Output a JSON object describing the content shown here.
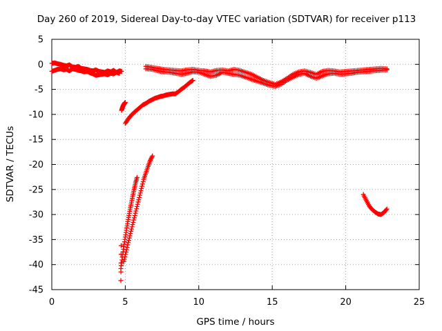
{
  "chart_data": {
    "type": "scatter",
    "title": "Day 260 of 2019, Sidereal Day-to-day VTEC variation (SDTVAR) for receiver p113",
    "xlabel": "GPS time / hours",
    "ylabel": "SDTVAR / TECUs",
    "xlim": [
      0,
      25
    ],
    "ylim": [
      -45,
      5
    ],
    "xticks": [
      0,
      5,
      10,
      15,
      20,
      25
    ],
    "yticks": [
      5,
      0,
      -5,
      -10,
      -15,
      -20,
      -25,
      -30,
      -35,
      -40,
      -45
    ],
    "xtick_labels": [
      "0",
      "5",
      "10",
      "15",
      "20",
      "25"
    ],
    "ytick_labels": [
      "5",
      "0",
      "-5",
      "-10",
      "-15",
      "-20",
      "-25",
      "-30",
      "-35",
      "-40",
      "-45"
    ],
    "grid": true,
    "marker": "+",
    "series": [
      {
        "name": "SDTVAR",
        "color": "#ff0000",
        "segments": [
          {
            "x": [
              0.0,
              0.2,
              0.4,
              0.6,
              0.8,
              1.0,
              1.2,
              1.4,
              1.6,
              1.8,
              2.0,
              2.2,
              2.4,
              2.6,
              2.8,
              3.0,
              3.2,
              3.4,
              3.6,
              3.8,
              4.0,
              4.2,
              4.4,
              4.6,
              4.75
            ],
            "y": [
              0.2,
              0.3,
              0.1,
              0.0,
              -0.2,
              -0.3,
              -0.1,
              -0.5,
              -0.6,
              -0.4,
              -0.8,
              -0.9,
              -1.0,
              -1.2,
              -1.3,
              -1.1,
              -1.4,
              -1.5,
              -1.6,
              -1.3,
              -1.5,
              -1.2,
              -1.6,
              -1.3,
              -1.4
            ]
          },
          {
            "x": [
              0.0,
              0.2,
              0.4,
              0.6,
              0.8,
              1.0,
              1.2,
              1.4,
              1.6,
              1.8,
              2.0,
              2.2,
              2.4,
              2.6,
              2.8,
              3.0,
              3.2,
              3.4,
              3.6,
              3.8,
              4.0,
              4.2,
              4.4,
              4.6
            ],
            "y": [
              -1.4,
              -1.2,
              -1.0,
              -0.9,
              -1.1,
              -1.0,
              -1.3,
              -0.9,
              -1.0,
              -1.2,
              -1.3,
              -1.5,
              -1.4,
              -1.7,
              -1.9,
              -2.2,
              -2.1,
              -2.0,
              -1.9,
              -2.1,
              -1.8,
              -1.9,
              -1.6,
              -1.8
            ]
          },
          {
            "x": [
              4.75,
              4.8,
              4.85,
              4.9,
              4.95,
              5.0
            ],
            "y": [
              -9.2,
              -8.7,
              -8.3,
              -8.0,
              -7.8,
              -7.6
            ]
          },
          {
            "x": [
              5.0,
              5.2,
              5.4,
              5.6,
              5.8,
              6.0,
              6.2,
              6.4,
              6.6,
              6.8,
              7.0,
              7.2,
              7.4,
              7.6,
              7.8,
              8.0,
              8.2,
              8.4,
              8.6,
              8.8,
              9.0,
              9.2,
              9.4,
              9.6
            ],
            "y": [
              -11.8,
              -10.9,
              -10.2,
              -9.6,
              -9.1,
              -8.6,
              -8.1,
              -7.8,
              -7.4,
              -7.1,
              -6.8,
              -6.6,
              -6.4,
              -6.3,
              -6.1,
              -6.0,
              -5.9,
              -5.9,
              -5.5,
              -5.0,
              -4.6,
              -4.1,
              -3.6,
              -3.2
            ]
          },
          {
            "x": [
              4.7,
              4.8,
              4.9,
              5.0,
              5.1,
              5.2,
              5.3,
              5.4,
              5.5,
              5.6,
              5.7,
              5.8
            ],
            "y": [
              -40.8,
              -38.5,
              -36.4,
              -34.5,
              -32.7,
              -31.0,
              -29.4,
              -27.9,
              -26.4,
              -25.0,
              -23.7,
              -22.6
            ]
          },
          {
            "x": [
              4.9,
              5.05,
              5.2,
              5.35,
              5.5,
              5.65,
              5.8,
              5.95,
              6.1,
              6.25,
              6.4,
              6.55,
              6.7,
              6.85
            ],
            "y": [
              -39.4,
              -37.5,
              -35.6,
              -33.8,
              -32.0,
              -30.2,
              -28.4,
              -26.6,
              -24.8,
              -23.0,
              -21.7,
              -20.4,
              -19.2,
              -18.3
            ]
          },
          {
            "x": [
              4.7,
              4.72
            ],
            "y": [
              -43.2,
              -36.2
            ]
          },
          {
            "x": [
              6.4,
              6.8,
              7.2,
              7.6,
              8.0,
              8.4,
              8.8,
              9.2,
              9.6,
              10.0,
              10.4,
              10.8,
              11.2,
              11.6,
              12.0,
              12.4,
              12.8,
              13.2,
              13.6,
              14.0,
              14.4,
              14.8,
              15.2,
              15.6,
              16.0,
              16.4,
              16.8,
              17.2,
              17.6,
              18.0,
              18.4,
              18.8,
              19.2,
              19.6,
              20.0,
              20.4,
              20.8,
              21.2,
              21.6,
              22.0,
              22.4,
              22.8
            ],
            "y": [
              -0.4,
              -0.6,
              -0.8,
              -1.0,
              -1.1,
              -1.2,
              -1.3,
              -1.1,
              -1.0,
              -1.2,
              -1.3,
              -1.5,
              -1.2,
              -1.1,
              -1.3,
              -1.0,
              -1.2,
              -1.6,
              -2.0,
              -2.6,
              -3.2,
              -3.6,
              -4.0,
              -3.5,
              -2.8,
              -2.0,
              -1.5,
              -1.3,
              -1.6,
              -2.0,
              -1.4,
              -1.2,
              -1.3,
              -1.5,
              -1.4,
              -1.3,
              -1.2,
              -1.1,
              -1.0,
              -0.9,
              -0.8,
              -0.9
            ]
          },
          {
            "x": [
              6.4,
              6.8,
              7.2,
              7.6,
              8.0,
              8.4,
              8.8,
              9.2,
              9.6,
              10.0,
              10.4,
              10.8,
              11.2,
              11.6,
              12.0,
              12.4,
              12.8,
              13.2,
              13.6,
              14.0,
              14.4,
              14.8,
              15.2,
              15.6,
              16.0,
              16.4,
              16.8,
              17.2,
              17.6,
              18.0,
              18.4,
              18.8,
              19.2,
              19.6,
              20.0,
              20.4,
              20.8,
              21.2,
              21.6,
              22.0,
              22.4,
              22.8
            ],
            "y": [
              -0.9,
              -1.0,
              -1.3,
              -1.5,
              -1.6,
              -1.8,
              -2.0,
              -1.8,
              -1.5,
              -1.6,
              -2.0,
              -2.4,
              -2.2,
              -1.6,
              -1.8,
              -2.0,
              -2.2,
              -2.6,
              -3.0,
              -3.4,
              -3.8,
              -4.2,
              -4.4,
              -4.0,
              -3.2,
              -2.6,
              -2.0,
              -1.8,
              -2.4,
              -2.8,
              -2.3,
              -1.9,
              -1.8,
              -2.0,
              -1.9,
              -1.8,
              -1.6,
              -1.5,
              -1.4,
              -1.3,
              -1.2,
              -1.1
            ]
          },
          {
            "x": [
              21.2,
              21.4,
              21.6,
              21.8,
              22.0,
              22.2,
              22.4,
              22.6,
              22.8
            ],
            "y": [
              -26.0,
              -27.2,
              -28.3,
              -29.0,
              -29.5,
              -29.9,
              -30.0,
              -29.6,
              -28.9
            ]
          }
        ]
      }
    ]
  }
}
